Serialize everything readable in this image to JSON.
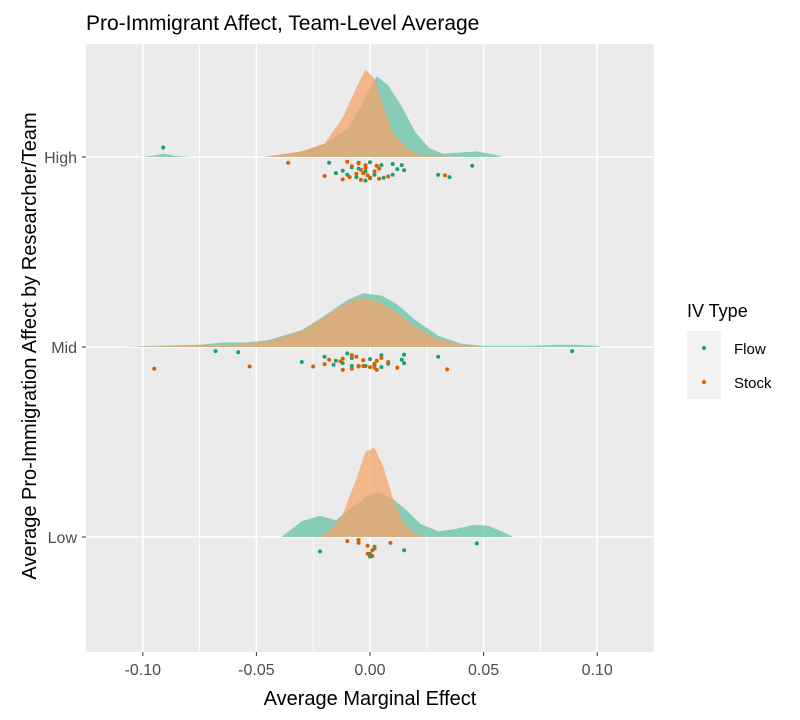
{
  "chart_data": {
    "type": "ridgeline",
    "title": "Pro-Immigrant Affect, Team-Level Average",
    "xlabel": "Average Marginal Effect",
    "ylabel": "Average Pro-Immigration Affect by Researcher/Team",
    "xlim": [
      -0.125,
      0.125
    ],
    "x_ticks": [
      -0.1,
      -0.05,
      0.0,
      0.05,
      0.1
    ],
    "x_tick_labels": [
      "-0.10",
      "-0.05",
      "0.00",
      "0.05",
      "0.10"
    ],
    "categories": [
      "Low",
      "Mid",
      "High"
    ],
    "grid": true,
    "legend": {
      "title": "IV Type",
      "position": "right",
      "entries": [
        {
          "name": "Flow",
          "color": "#1b9e77"
        },
        {
          "name": "Stock",
          "color": "#d95f02"
        }
      ]
    },
    "series": [
      {
        "name": "Flow",
        "color": "#1b9e77",
        "density_color": "#66c2a5",
        "points": {
          "High": [
            [
              -0.091,
              -0.22
            ],
            [
              0.0,
              0.04
            ],
            [
              -0.005,
              0.05
            ],
            [
              0.005,
              0.09
            ],
            [
              0.01,
              0.07
            ],
            [
              0.014,
              0.09
            ],
            [
              0.045,
              0.1
            ],
            [
              -0.018,
              0.05
            ],
            [
              0.012,
              0.16
            ],
            [
              -0.005,
              0.15
            ],
            [
              0.015,
              0.18
            ],
            [
              -0.015,
              0.23
            ],
            [
              0.01,
              0.26
            ],
            [
              0.035,
              0.3
            ],
            [
              0.03,
              0.26
            ],
            [
              0.002,
              0.26
            ],
            [
              -0.01,
              0.26
            ],
            [
              0.006,
              0.31
            ],
            [
              -0.002,
              0.2
            ],
            [
              -0.012,
              0.19
            ],
            [
              -0.002,
              0.36
            ],
            [
              0.0,
              0.31
            ],
            [
              -0.008,
              0.13
            ],
            [
              -0.006,
              0.3
            ]
          ],
          "Mid": [
            [
              -0.068,
              0.02
            ],
            [
              -0.058,
              0.04
            ],
            [
              0.089,
              0.02
            ],
            [
              -0.01,
              0.06
            ],
            [
              0.015,
              0.08
            ],
            [
              -0.02,
              0.12
            ],
            [
              0.03,
              0.12
            ],
            [
              0.005,
              0.09
            ],
            [
              -0.015,
              0.19
            ],
            [
              -0.03,
              0.21
            ],
            [
              0.014,
              0.17
            ],
            [
              -0.005,
              0.28
            ],
            [
              0.002,
              0.27
            ],
            [
              0.008,
              0.24
            ],
            [
              -0.012,
              0.23
            ],
            [
              0.015,
              0.23
            ],
            [
              -0.008,
              0.14
            ],
            [
              0.0,
              0.16
            ],
            [
              -0.002,
              0.28
            ],
            [
              0.005,
              0.3
            ],
            [
              -0.008,
              0.28
            ],
            [
              -0.016,
              0.26
            ]
          ],
          "Low": [
            [
              -0.022,
              0.2
            ],
            [
              0.015,
              0.18
            ],
            [
              0.047,
              0.06
            ],
            [
              0.002,
              0.12
            ],
            [
              0.0,
              0.24
            ],
            [
              0.0,
              0.29
            ]
          ]
        },
        "densities": {
          "High": [
            [
              -0.1,
              0
            ],
            [
              -0.096,
              0.01
            ],
            [
              -0.091,
              0.03
            ],
            [
              -0.086,
              0.01
            ],
            [
              -0.078,
              0
            ],
            [
              -0.047,
              0
            ],
            [
              -0.03,
              0.05
            ],
            [
              -0.02,
              0.12
            ],
            [
              -0.01,
              0.25
            ],
            [
              -0.004,
              0.45
            ],
            [
              0.0,
              0.62
            ],
            [
              0.003,
              0.72
            ],
            [
              0.008,
              0.64
            ],
            [
              0.014,
              0.45
            ],
            [
              0.02,
              0.22
            ],
            [
              0.026,
              0.08
            ],
            [
              0.032,
              0.03
            ],
            [
              0.04,
              0.04
            ],
            [
              0.047,
              0.05
            ],
            [
              0.055,
              0.02
            ],
            [
              0.058,
              0
            ]
          ],
          "Mid": [
            [
              -0.108,
              0
            ],
            [
              -0.095,
              0.01
            ],
            [
              -0.075,
              0.02
            ],
            [
              -0.065,
              0.04
            ],
            [
              -0.055,
              0.04
            ],
            [
              -0.045,
              0.06
            ],
            [
              -0.03,
              0.15
            ],
            [
              -0.02,
              0.28
            ],
            [
              -0.01,
              0.42
            ],
            [
              -0.003,
              0.48
            ],
            [
              0.005,
              0.46
            ],
            [
              0.012,
              0.38
            ],
            [
              0.02,
              0.24
            ],
            [
              0.03,
              0.1
            ],
            [
              0.04,
              0.03
            ],
            [
              0.05,
              0.01
            ],
            [
              0.07,
              0.01
            ],
            [
              0.082,
              0.02
            ],
            [
              0.09,
              0.02
            ],
            [
              0.1,
              0.01
            ],
            [
              0.102,
              0
            ]
          ],
          "Low": [
            [
              -0.039,
              0
            ],
            [
              -0.03,
              0.14
            ],
            [
              -0.022,
              0.19
            ],
            [
              -0.015,
              0.15
            ],
            [
              -0.008,
              0.26
            ],
            [
              0.0,
              0.38
            ],
            [
              0.004,
              0.4
            ],
            [
              0.01,
              0.34
            ],
            [
              0.016,
              0.24
            ],
            [
              0.022,
              0.12
            ],
            [
              0.03,
              0.05
            ],
            [
              0.037,
              0.07
            ],
            [
              0.046,
              0.11
            ],
            [
              0.052,
              0.1
            ],
            [
              0.058,
              0.05
            ],
            [
              0.063,
              0
            ]
          ]
        }
      },
      {
        "name": "Stock",
        "color": "#d95f02",
        "density_color": "#f4a46b",
        "points": {
          "High": [
            [
              -0.036,
              0.05
            ],
            [
              -0.01,
              0.03
            ],
            [
              -0.005,
              0.06
            ],
            [
              -0.002,
              0.09
            ],
            [
              0.003,
              0.1
            ],
            [
              -0.008,
              0.11
            ],
            [
              0.004,
              0.15
            ],
            [
              -0.002,
              0.14
            ],
            [
              -0.004,
              0.17
            ],
            [
              0.002,
              0.2
            ],
            [
              -0.006,
              0.24
            ],
            [
              -0.003,
              0.23
            ],
            [
              -0.001,
              0.27
            ],
            [
              -0.009,
              0.3
            ],
            [
              0.008,
              0.29
            ],
            [
              0.033,
              0.27
            ],
            [
              -0.012,
              0.34
            ],
            [
              0.004,
              0.33
            ],
            [
              -0.02,
              0.28
            ],
            [
              0.0,
              0.32
            ],
            [
              -0.004,
              0.35
            ]
          ],
          "Mid": [
            [
              -0.095,
              0.33
            ],
            [
              -0.053,
              0.29
            ],
            [
              0.034,
              0.34
            ],
            [
              -0.008,
              0.09
            ],
            [
              -0.006,
              0.12
            ],
            [
              -0.012,
              0.15
            ],
            [
              0.005,
              0.14
            ],
            [
              -0.018,
              0.17
            ],
            [
              -0.013,
              0.2
            ],
            [
              -0.003,
              0.18
            ],
            [
              0.003,
              0.19
            ],
            [
              -0.02,
              0.25
            ],
            [
              -0.025,
              0.29
            ],
            [
              0.002,
              0.31
            ],
            [
              0.012,
              0.31
            ],
            [
              -0.008,
              0.33
            ],
            [
              0.003,
              0.35
            ],
            [
              -0.005,
              0.29
            ],
            [
              -0.012,
              0.35
            ],
            [
              0.002,
              0.24
            ],
            [
              0.008,
              0.21
            ],
            [
              -0.003,
              0.28
            ],
            [
              0.0,
              0.3
            ]
          ],
          "Low": [
            [
              -0.01,
              0.02
            ],
            [
              -0.005,
              0.05
            ],
            [
              0.009,
              0.05
            ],
            [
              -0.001,
              0.1
            ],
            [
              0.002,
              0.15
            ],
            [
              0.001,
              0.18
            ],
            [
              -0.001,
              0.24
            ],
            [
              0.001,
              0.28
            ],
            [
              -0.005,
              0.0
            ]
          ]
        },
        "densities": {
          "High": [
            [
              -0.047,
              0
            ],
            [
              -0.04,
              0.02
            ],
            [
              -0.03,
              0.05
            ],
            [
              -0.02,
              0.12
            ],
            [
              -0.012,
              0.35
            ],
            [
              -0.006,
              0.62
            ],
            [
              -0.002,
              0.78
            ],
            [
              0.002,
              0.7
            ],
            [
              0.006,
              0.45
            ],
            [
              0.01,
              0.22
            ],
            [
              0.015,
              0.1
            ],
            [
              0.02,
              0.03
            ],
            [
              0.025,
              0.01
            ],
            [
              0.042,
              0
            ]
          ],
          "Mid": [
            [
              -0.108,
              0
            ],
            [
              -0.08,
              0.01
            ],
            [
              -0.06,
              0.02
            ],
            [
              -0.045,
              0.05
            ],
            [
              -0.03,
              0.14
            ],
            [
              -0.02,
              0.27
            ],
            [
              -0.01,
              0.4
            ],
            [
              -0.004,
              0.44
            ],
            [
              0.003,
              0.41
            ],
            [
              0.01,
              0.33
            ],
            [
              0.02,
              0.18
            ],
            [
              0.03,
              0.07
            ],
            [
              0.04,
              0.02
            ],
            [
              0.046,
              0.01
            ],
            [
              0.048,
              0
            ]
          ],
          "Low": [
            [
              -0.022,
              0
            ],
            [
              -0.018,
              0.05
            ],
            [
              -0.012,
              0.2
            ],
            [
              -0.006,
              0.52
            ],
            [
              -0.002,
              0.76
            ],
            [
              0.002,
              0.8
            ],
            [
              0.006,
              0.62
            ],
            [
              0.01,
              0.35
            ],
            [
              0.015,
              0.12
            ],
            [
              0.02,
              0.03
            ],
            [
              0.024,
              0
            ]
          ]
        }
      }
    ]
  }
}
